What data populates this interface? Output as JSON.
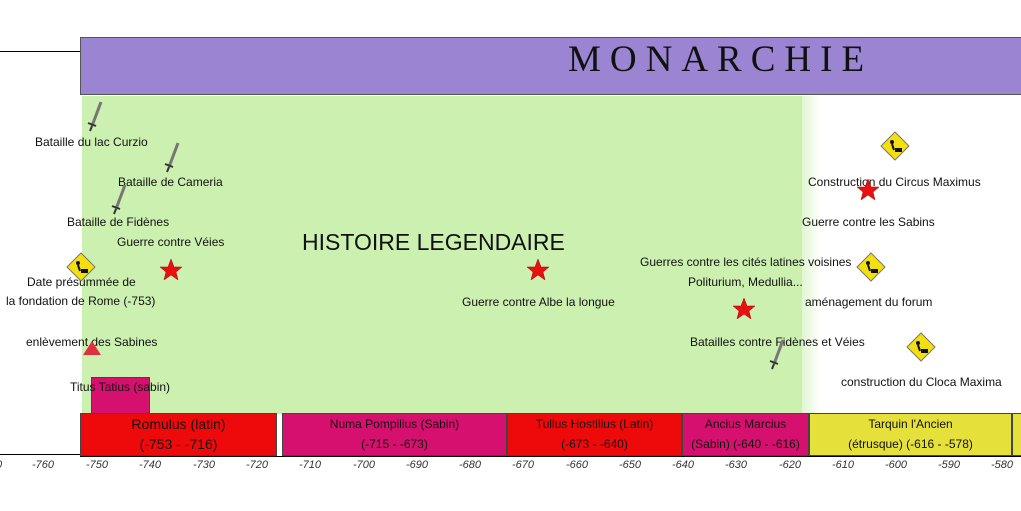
{
  "banner": {
    "title": "MONARCHIE",
    "color": "#9b85d2"
  },
  "legend_zone": {
    "title": "HISTOIRE LEGENDAIRE",
    "color": "#ccf0b0"
  },
  "events": {
    "lac_curzio": "Bataille du lac Curzio",
    "cameria": "Bataille de Cameria",
    "fidenes": "Bataille de Fidènes",
    "veies": "Guerre contre Véies",
    "fondation_1": "Date présummée de",
    "fondation_2": "la fondation de Rome (-753)",
    "sabines": "enlèvement des Sabines",
    "tatius": "Titus Tatius (sabin)",
    "albe": "Guerre contre Albe la longue",
    "latines_1": "Guerres contre les cités latines voisines",
    "latines_2": "Politurium, Medullia...",
    "fidenes_veies": "Batailles contre Fidènes et Véies",
    "circus": "Construction du Circus Maximus",
    "sabins": "Guerre contre les Sabins",
    "forum": "aménagement du forum",
    "cloaca": "construction du Cloca Maxima"
  },
  "reigns": [
    {
      "name": "Romulus (latin)",
      "dates": "(-753 - -716)",
      "color": "#ee0a0a"
    },
    {
      "name": "Numa Pompilius (Sabin)",
      "dates": "(-715 - -673)",
      "color": "#d6106e"
    },
    {
      "name": "Tullus Hostilius (Latin)",
      "dates": "(-673 - -640)",
      "color": "#ee0a0a"
    },
    {
      "name": "Ancius Marcius",
      "dates": "(Sabin) (-640 - -616)",
      "color": "#d6106e"
    },
    {
      "name": "Tarquin l'Ancien",
      "dates": "(étrusque) (-616 - -578)",
      "color": "#e6e03a"
    }
  ],
  "ticks": [
    "0",
    "-760",
    "-750",
    "-740",
    "-730",
    "-720",
    "-710",
    "-700",
    "-690",
    "-680",
    "-670",
    "-660",
    "-650",
    "-640",
    "-630",
    "-620",
    "-610",
    "-600",
    "-590",
    "-580"
  ],
  "icons": {
    "sword": "sword-icon",
    "star": "red-star-icon",
    "works": "construction-sign-icon",
    "triangle": "red-triangle-icon"
  }
}
